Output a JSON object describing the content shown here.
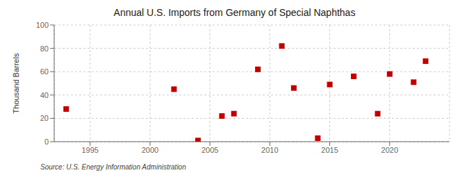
{
  "chart_data": {
    "type": "scatter",
    "title": "Annual U.S. Imports from Germany of Special Naphthas",
    "ylabel": "Thousand Barrels",
    "source": "Source: U.S. Energy Information Administration",
    "x": [
      1993,
      2002,
      2004,
      2006,
      2007,
      2009,
      2011,
      2012,
      2014,
      2015,
      2017,
      2019,
      2020,
      2022,
      2023
    ],
    "values": [
      28,
      45,
      1,
      22,
      24,
      62,
      82,
      46,
      3,
      49,
      56,
      24,
      58,
      51,
      69
    ],
    "color": "#c00000",
    "marker": "square",
    "xlim": [
      1992,
      2025
    ],
    "ylim": [
      0,
      100
    ],
    "xticks": [
      1995,
      2000,
      2005,
      2010,
      2015,
      2020
    ],
    "yticks": [
      0,
      20,
      40,
      60,
      80,
      100
    ],
    "grid": true
  }
}
